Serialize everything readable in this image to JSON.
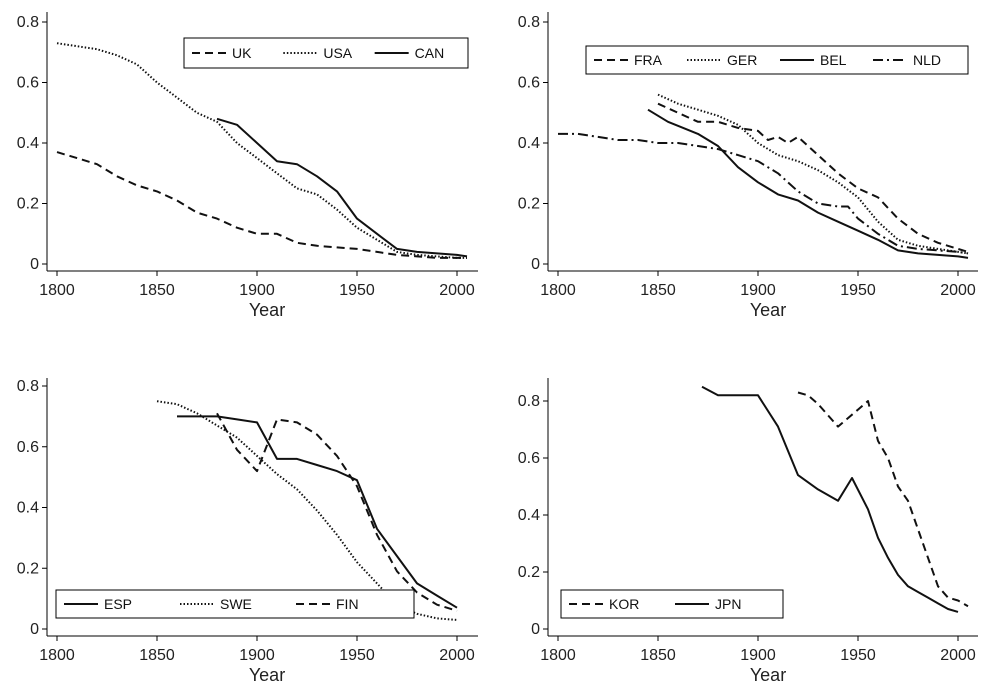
{
  "chart_data": [
    {
      "type": "line",
      "xlabel": "Year",
      "ylabel": "",
      "xlim": [
        1795,
        2008
      ],
      "ylim": [
        0,
        0.8
      ],
      "xticks": [
        1800,
        1850,
        1900,
        1950,
        2000
      ],
      "yticks": [
        0,
        0.2,
        0.4,
        0.6,
        0.8
      ],
      "ytick_labels": [
        "0",
        "0.2",
        "0.4",
        "0.6",
        "0.8"
      ],
      "legend": "top-right",
      "series": [
        {
          "name": "UK",
          "style": "dashed",
          "x": [
            1800,
            1810,
            1820,
            1830,
            1840,
            1850,
            1860,
            1870,
            1880,
            1890,
            1900,
            1910,
            1920,
            1930,
            1940,
            1950,
            1960,
            1970,
            1980,
            1990,
            2000,
            2005
          ],
          "y": [
            0.37,
            0.35,
            0.33,
            0.29,
            0.26,
            0.24,
            0.21,
            0.17,
            0.15,
            0.12,
            0.1,
            0.1,
            0.07,
            0.06,
            0.055,
            0.05,
            0.04,
            0.03,
            0.025,
            0.02,
            0.02,
            0.02
          ]
        },
        {
          "name": "USA",
          "style": "dotted",
          "x": [
            1800,
            1810,
            1820,
            1830,
            1840,
            1850,
            1860,
            1870,
            1880,
            1890,
            1900,
            1910,
            1920,
            1930,
            1940,
            1950,
            1960,
            1970,
            1980,
            1990,
            2000,
            2005
          ],
          "y": [
            0.73,
            0.72,
            0.71,
            0.69,
            0.66,
            0.6,
            0.55,
            0.5,
            0.47,
            0.4,
            0.35,
            0.3,
            0.25,
            0.23,
            0.18,
            0.12,
            0.08,
            0.04,
            0.03,
            0.025,
            0.02,
            0.02
          ]
        },
        {
          "name": "CAN",
          "style": "solid",
          "x": [
            1880,
            1890,
            1900,
            1910,
            1920,
            1930,
            1940,
            1950,
            1960,
            1970,
            1980,
            1990,
            2000,
            2005
          ],
          "y": [
            0.48,
            0.46,
            0.4,
            0.34,
            0.33,
            0.29,
            0.24,
            0.15,
            0.1,
            0.05,
            0.04,
            0.035,
            0.03,
            0.025
          ]
        }
      ]
    },
    {
      "type": "line",
      "xlabel": "Year",
      "ylabel": "",
      "xlim": [
        1795,
        2008
      ],
      "ylim": [
        0,
        0.8
      ],
      "xticks": [
        1800,
        1850,
        1900,
        1950,
        2000
      ],
      "yticks": [
        0,
        0.2,
        0.4,
        0.6,
        0.8
      ],
      "ytick_labels": [
        "0",
        "0.2",
        "0.4",
        "0.6",
        "0.8"
      ],
      "legend": "top-right",
      "series": [
        {
          "name": "FRA",
          "style": "dashed",
          "x": [
            1850,
            1860,
            1870,
            1880,
            1890,
            1900,
            1905,
            1910,
            1915,
            1920,
            1930,
            1940,
            1950,
            1960,
            1970,
            1980,
            1990,
            2000,
            2005
          ],
          "y": [
            0.53,
            0.5,
            0.47,
            0.47,
            0.45,
            0.44,
            0.41,
            0.42,
            0.4,
            0.42,
            0.36,
            0.3,
            0.25,
            0.22,
            0.15,
            0.1,
            0.07,
            0.05,
            0.04
          ]
        },
        {
          "name": "GER",
          "style": "dotted",
          "x": [
            1850,
            1860,
            1870,
            1880,
            1890,
            1900,
            1910,
            1920,
            1930,
            1940,
            1950,
            1960,
            1970,
            1980,
            1990,
            2000,
            2005
          ],
          "y": [
            0.56,
            0.53,
            0.51,
            0.49,
            0.46,
            0.4,
            0.36,
            0.34,
            0.31,
            0.27,
            0.22,
            0.14,
            0.08,
            0.06,
            0.05,
            0.04,
            0.035
          ]
        },
        {
          "name": "BEL",
          "style": "solid",
          "x": [
            1845,
            1855,
            1870,
            1880,
            1890,
            1900,
            1910,
            1920,
            1930,
            1940,
            1950,
            1960,
            1970,
            1980,
            1990,
            2000,
            2005
          ],
          "y": [
            0.51,
            0.47,
            0.43,
            0.39,
            0.32,
            0.27,
            0.23,
            0.21,
            0.17,
            0.14,
            0.11,
            0.08,
            0.045,
            0.035,
            0.03,
            0.025,
            0.02
          ]
        },
        {
          "name": "NLD",
          "style": "dashdot",
          "x": [
            1800,
            1810,
            1820,
            1830,
            1840,
            1850,
            1860,
            1870,
            1880,
            1890,
            1900,
            1910,
            1920,
            1930,
            1940,
            1945,
            1950,
            1960,
            1970,
            1980,
            1990,
            2000,
            2005
          ],
          "y": [
            0.43,
            0.43,
            0.42,
            0.41,
            0.41,
            0.4,
            0.4,
            0.39,
            0.38,
            0.36,
            0.34,
            0.3,
            0.24,
            0.2,
            0.19,
            0.19,
            0.15,
            0.1,
            0.06,
            0.05,
            0.045,
            0.04,
            0.035
          ]
        }
      ]
    },
    {
      "type": "line",
      "xlabel": "Year",
      "ylabel": "",
      "xlim": [
        1795,
        2003
      ],
      "ylim": [
        0,
        0.8
      ],
      "xticks": [
        1800,
        1850,
        1900,
        1950,
        2000
      ],
      "yticks": [
        0,
        0.2,
        0.4,
        0.6,
        0.8
      ],
      "ytick_labels": [
        "0",
        "0.2",
        "0.4",
        "0.6",
        "0.8"
      ],
      "legend": "bottom-left",
      "series": [
        {
          "name": "ESP",
          "style": "solid",
          "x": [
            1860,
            1870,
            1880,
            1890,
            1900,
            1910,
            1920,
            1930,
            1940,
            1950,
            1960,
            1970,
            1980,
            1990,
            2000
          ],
          "y": [
            0.7,
            0.7,
            0.7,
            0.69,
            0.68,
            0.56,
            0.56,
            0.54,
            0.52,
            0.49,
            0.33,
            0.24,
            0.15,
            0.11,
            0.07
          ]
        },
        {
          "name": "SWE",
          "style": "dotted",
          "x": [
            1850,
            1860,
            1870,
            1880,
            1890,
            1900,
            1910,
            1920,
            1930,
            1940,
            1950,
            1960,
            1970,
            1980,
            1990,
            2000
          ],
          "y": [
            0.75,
            0.74,
            0.71,
            0.67,
            0.63,
            0.57,
            0.51,
            0.46,
            0.39,
            0.31,
            0.22,
            0.15,
            0.08,
            0.05,
            0.035,
            0.03
          ]
        },
        {
          "name": "FIN",
          "style": "dashed",
          "x": [
            1880,
            1890,
            1900,
            1910,
            1920,
            1930,
            1940,
            1950,
            1960,
            1970,
            1980,
            1990,
            2000
          ],
          "y": [
            0.71,
            0.59,
            0.52,
            0.69,
            0.68,
            0.64,
            0.57,
            0.47,
            0.31,
            0.19,
            0.12,
            0.08,
            0.06
          ]
        }
      ]
    },
    {
      "type": "line",
      "xlabel": "Year",
      "ylabel": "",
      "xlim": [
        1795,
        2008
      ],
      "ylim": [
        -0.005,
        0.88
      ],
      "xticks": [
        1800,
        1850,
        1900,
        1950,
        2000
      ],
      "yticks": [
        0,
        0.2,
        0.4,
        0.6,
        0.8
      ],
      "ytick_labels": [
        "0",
        "0.2",
        "0.4",
        "0.6",
        "0.8"
      ],
      "legend": "bottom-left",
      "series": [
        {
          "name": "KOR",
          "style": "dashed",
          "x": [
            1920,
            1925,
            1930,
            1935,
            1940,
            1945,
            1950,
            1955,
            1960,
            1965,
            1970,
            1975,
            1980,
            1985,
            1990,
            1995,
            2000,
            2005
          ],
          "y": [
            0.83,
            0.82,
            0.79,
            0.75,
            0.71,
            0.74,
            0.77,
            0.8,
            0.66,
            0.6,
            0.5,
            0.45,
            0.35,
            0.25,
            0.15,
            0.11,
            0.1,
            0.08
          ]
        },
        {
          "name": "JPN",
          "style": "solid",
          "x": [
            1872,
            1880,
            1890,
            1900,
            1910,
            1920,
            1930,
            1940,
            1947,
            1955,
            1960,
            1965,
            1970,
            1975,
            1980,
            1985,
            1990,
            1995,
            2000
          ],
          "y": [
            0.85,
            0.82,
            0.82,
            0.82,
            0.71,
            0.54,
            0.49,
            0.45,
            0.53,
            0.42,
            0.32,
            0.25,
            0.19,
            0.15,
            0.13,
            0.11,
            0.09,
            0.07,
            0.06
          ]
        }
      ]
    }
  ]
}
